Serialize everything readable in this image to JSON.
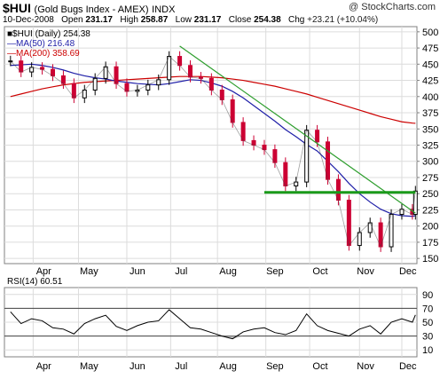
{
  "header": {
    "symbol": "$HUI",
    "name": "(Gold Bugs Index - AMEX)",
    "exchange": "INDX",
    "copyright": "@ StockCharts.com",
    "date": "10-Dec-2008",
    "open_label": "Open",
    "open": "231.17",
    "high_label": "High",
    "high": "258.87",
    "low_label": "Low",
    "low": "231.17",
    "close_label": "Close",
    "close": "254.38",
    "chg_label": "Chg",
    "chg": "+23.21 (+10.04%)"
  },
  "colors": {
    "price_up": "#000000",
    "price_down": "#cc0033",
    "ma50": "#1f1fa8",
    "ma200": "#cc0000",
    "trendline": "#2e9e2e",
    "support": "#1a9a1a",
    "rsi_line": "#000000",
    "rsi_fill": "#999999"
  },
  "chart_data": [
    {
      "type": "line",
      "title": "",
      "legend": [
        {
          "label": "■$HUI (Daily) 254.38",
          "color": "#000000"
        },
        {
          "label": "—MA(50) 216.48",
          "color": "#1f1fa8"
        },
        {
          "label": "—MA(200) 358.69",
          "color": "#cc0000"
        }
      ],
      "legend_position": "top-left",
      "x_tick_labels": [
        "Apr",
        "May",
        "Jun",
        "Jul",
        "Aug",
        "Sep",
        "Oct",
        "Nov",
        "Dec"
      ],
      "y_tick_labels": [
        "500",
        "475",
        "450",
        "425",
        "400",
        "375",
        "350",
        "325",
        "300",
        "275",
        "250",
        "225",
        "200",
        "175",
        "150"
      ],
      "y_ticks": [
        500,
        475,
        450,
        425,
        400,
        375,
        350,
        325,
        300,
        275,
        250,
        225,
        200,
        175,
        150
      ],
      "ylim": [
        142,
        508
      ],
      "grid": true,
      "x": [
        "2008-03-17",
        "2008-03-24",
        "2008-03-31",
        "2008-04-07",
        "2008-04-14",
        "2008-04-21",
        "2008-04-28",
        "2008-05-05",
        "2008-05-12",
        "2008-05-19",
        "2008-05-26",
        "2008-06-02",
        "2008-06-09",
        "2008-06-16",
        "2008-06-23",
        "2008-06-30",
        "2008-07-07",
        "2008-07-14",
        "2008-07-21",
        "2008-07-28",
        "2008-08-04",
        "2008-08-11",
        "2008-08-18",
        "2008-08-25",
        "2008-09-01",
        "2008-09-08",
        "2008-09-15",
        "2008-09-22",
        "2008-09-29",
        "2008-10-06",
        "2008-10-13",
        "2008-10-20",
        "2008-10-27",
        "2008-11-03",
        "2008-11-10",
        "2008-11-17",
        "2008-11-24",
        "2008-12-01",
        "2008-12-08",
        "2008-12-10"
      ],
      "series": [
        {
          "name": "$HUI (Daily) 254.38",
          "style": "bars",
          "values": [
            455,
            438,
            445,
            442,
            432,
            420,
            398,
            410,
            428,
            446,
            420,
            408,
            410,
            418,
            426,
            462,
            448,
            430,
            428,
            410,
            395,
            360,
            332,
            325,
            318,
            298,
            262,
            268,
            348,
            330,
            272,
            240,
            170,
            190,
            205,
            168,
            218,
            226,
            218,
            254
          ]
        },
        {
          "name": "MA(50) 216.48",
          "values": [
            448,
            449,
            450,
            448,
            445,
            441,
            436,
            432,
            429,
            427,
            424,
            422,
            420,
            419,
            418,
            420,
            423,
            426,
            425,
            421,
            416,
            408,
            398,
            386,
            374,
            362,
            349,
            338,
            326,
            316,
            300,
            284,
            266,
            250,
            237,
            226,
            219,
            216,
            215,
            216
          ]
        },
        {
          "name": "MA(200) 358.69",
          "values": [
            400,
            404,
            408,
            412,
            415,
            418,
            420,
            422,
            423,
            424,
            425,
            426,
            427,
            428,
            429,
            430,
            431,
            431,
            431,
            430,
            429,
            427,
            425,
            422,
            419,
            416,
            412,
            408,
            404,
            399,
            394,
            389,
            384,
            379,
            374,
            369,
            365,
            361,
            359,
            358.69
          ]
        }
      ],
      "annotations": [
        {
          "type": "trendline",
          "from": {
            "x": "2008-07-07",
            "y": 478
          },
          "to": {
            "x": "2008-12-10",
            "y": 220
          },
          "color": "#2e9e2e"
        },
        {
          "type": "support",
          "y": 252,
          "from_x": "2008-09-01",
          "to_x": "2008-12-10",
          "color": "#1a9a1a"
        }
      ]
    },
    {
      "type": "line",
      "title": "",
      "legend": [
        {
          "label": "RSI(14) 60.51",
          "color": "#000000"
        }
      ],
      "legend_position": "top-left",
      "x_tick_labels": [
        "Apr",
        "May",
        "Jun",
        "Jul",
        "Aug",
        "Sep",
        "Oct",
        "Nov",
        "Dec"
      ],
      "y_tick_labels": [
        "90",
        "70",
        "50",
        "30",
        "10"
      ],
      "y_ticks": [
        90,
        70,
        50,
        30,
        10
      ],
      "ylim": [
        0,
        100
      ],
      "reference_lines": [
        70,
        30
      ],
      "grid": true,
      "x": [
        "2008-03-17",
        "2008-03-24",
        "2008-03-31",
        "2008-04-07",
        "2008-04-14",
        "2008-04-21",
        "2008-04-28",
        "2008-05-05",
        "2008-05-12",
        "2008-05-19",
        "2008-05-26",
        "2008-06-02",
        "2008-06-09",
        "2008-06-16",
        "2008-06-23",
        "2008-06-30",
        "2008-07-07",
        "2008-07-14",
        "2008-07-21",
        "2008-07-28",
        "2008-08-04",
        "2008-08-11",
        "2008-08-18",
        "2008-08-25",
        "2008-09-01",
        "2008-09-08",
        "2008-09-15",
        "2008-09-22",
        "2008-09-29",
        "2008-10-06",
        "2008-10-13",
        "2008-10-20",
        "2008-10-27",
        "2008-11-03",
        "2008-11-10",
        "2008-11-17",
        "2008-11-24",
        "2008-12-01",
        "2008-12-08",
        "2008-12-10"
      ],
      "series": [
        {
          "name": "RSI(14) 60.51",
          "values": [
            65,
            48,
            55,
            52,
            42,
            40,
            33,
            48,
            55,
            60,
            44,
            38,
            45,
            50,
            52,
            68,
            55,
            42,
            40,
            35,
            30,
            26,
            36,
            40,
            42,
            35,
            32,
            38,
            62,
            45,
            38,
            34,
            30,
            40,
            45,
            33,
            50,
            55,
            50,
            60.51
          ]
        }
      ]
    }
  ]
}
